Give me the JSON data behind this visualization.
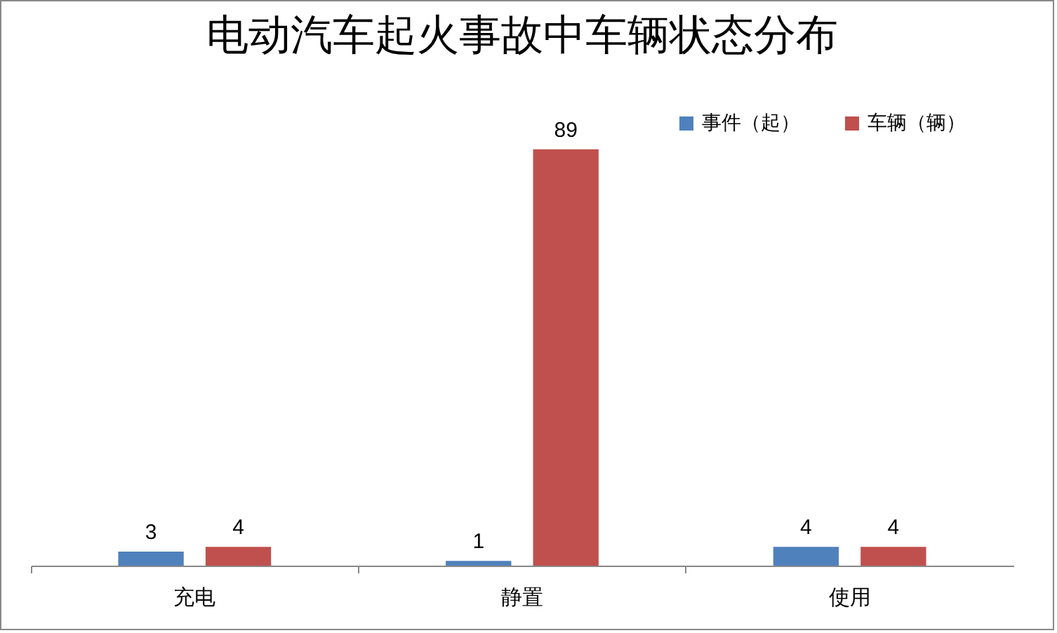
{
  "chart_data": {
    "type": "bar",
    "title": "电动汽车起火事故中车辆状态分布",
    "categories": [
      "充电",
      "静置",
      "使用"
    ],
    "series": [
      {
        "name": "事件（起）",
        "color": "#4f81bd",
        "values": [
          3,
          1,
          4
        ]
      },
      {
        "name": "车辆（辆）",
        "color": "#c0504d",
        "values": [
          4,
          89,
          4
        ]
      }
    ],
    "data_labels": true,
    "legend": "top right",
    "tick_labels": "x"
  }
}
